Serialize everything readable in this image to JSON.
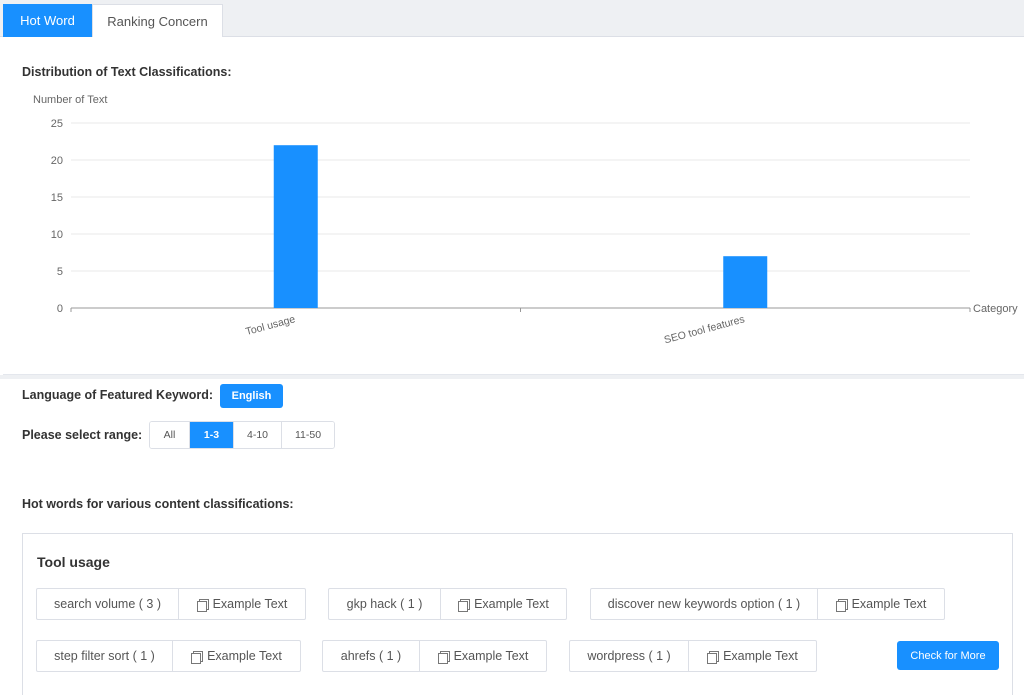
{
  "tabs": {
    "hot_word": "Hot Word",
    "ranking_concern": "Ranking Concern"
  },
  "chart_section": {
    "title": "Distribution of Text Classifications:"
  },
  "chart_data": {
    "type": "bar",
    "categories": [
      "Tool usage",
      "SEO tool features"
    ],
    "values": [
      22,
      7
    ],
    "ylabel": "Number of Text",
    "xlabel": "Category",
    "ylim": [
      0,
      25
    ],
    "yticks": [
      0,
      5,
      10,
      15,
      20,
      25
    ],
    "grid": true,
    "bar_color": "#1890ff"
  },
  "language": {
    "label": "Language of Featured Keyword:",
    "value": "English"
  },
  "range": {
    "label": "Please select range:",
    "options": [
      "All",
      "1-3",
      "4-10",
      "11-50"
    ],
    "selected": "1-3"
  },
  "hot_words": {
    "title": "Hot words for various content classifications:",
    "groups": [
      {
        "name": "Tool usage",
        "items": [
          {
            "word": "search volume ( 3 )",
            "example": "Example Text"
          },
          {
            "word": "gkp hack ( 1 )",
            "example": "Example Text"
          },
          {
            "word": "discover new keywords option ( 1 )",
            "example": "Example Text"
          },
          {
            "word": "step filter sort ( 1 )",
            "example": "Example Text"
          },
          {
            "word": "ahrefs ( 1 )",
            "example": "Example Text"
          },
          {
            "word": "wordpress ( 1 )",
            "example": "Example Text"
          }
        ],
        "more_label": "Check for More"
      }
    ]
  },
  "colors": {
    "accent": "#1890ff",
    "border": "#dcdfe6"
  }
}
